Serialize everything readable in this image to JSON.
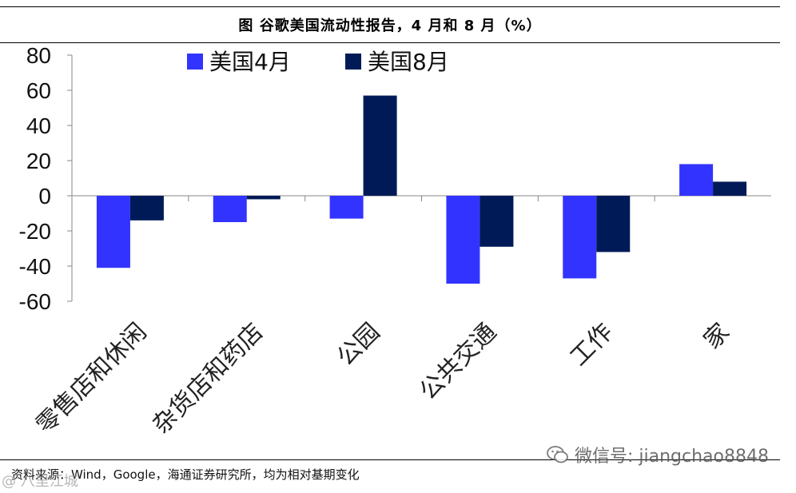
{
  "header": {
    "title": "图 谷歌美国流动性报告，4 月和 8 月（%）"
  },
  "chart_data": {
    "type": "bar",
    "categories": [
      "零售店和休闲",
      "杂货店和药店",
      "公园",
      "公共交通",
      "工作",
      "家"
    ],
    "series": [
      {
        "name": "美国4月",
        "values": [
          -41,
          -15,
          -13,
          -50,
          -47,
          18
        ],
        "color": "#3333FF"
      },
      {
        "name": "美国8月",
        "values": [
          -14,
          -2,
          57,
          -29,
          -32,
          8
        ],
        "color": "#001A57"
      }
    ],
    "ylim": [
      -60,
      80
    ],
    "yticks": [
      80,
      60,
      40,
      20,
      0,
      -20,
      -40,
      -60
    ],
    "legend_position": "top"
  },
  "footer": {
    "source": "资料来源：Wind，Google，海通证券研究所，均为相对基期变化",
    "watermark_text": "微信号: jiangchao8848",
    "watermark_left": "@ 八里江城"
  },
  "icons": {
    "watermark_icon": "wechat-icon"
  }
}
